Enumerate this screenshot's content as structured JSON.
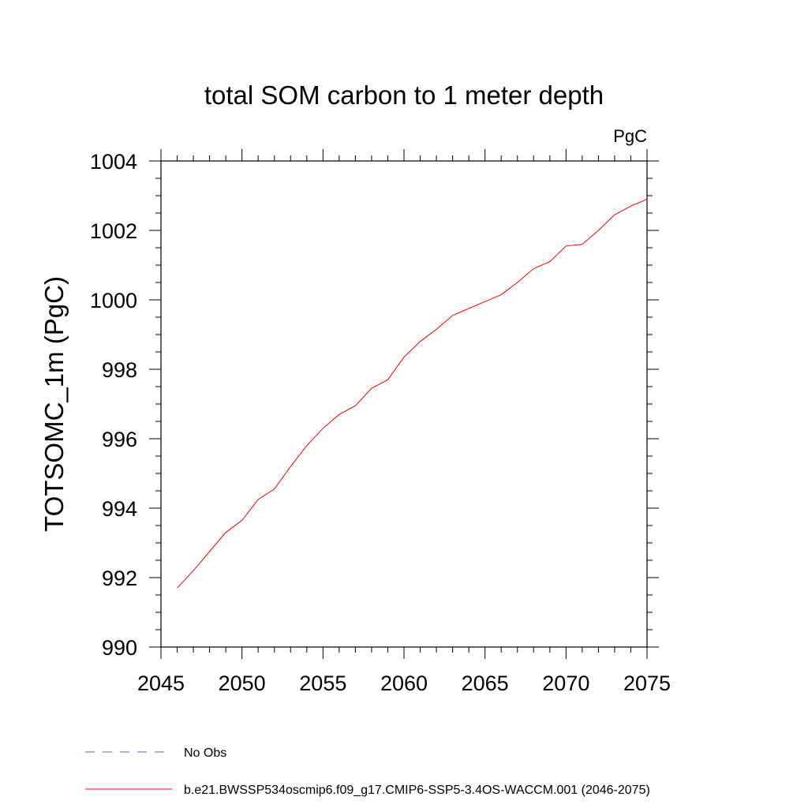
{
  "chart_data": {
    "type": "line",
    "title": "total SOM carbon to 1 meter depth",
    "units_label": "PgC",
    "xlabel": "",
    "ylabel": "TOTSOMC_1m  (PgC)",
    "xlim": [
      2045,
      2075
    ],
    "ylim": [
      990,
      1004
    ],
    "x_ticks": [
      2045,
      2050,
      2055,
      2060,
      2065,
      2070,
      2075
    ],
    "y_ticks": [
      990,
      992,
      994,
      996,
      998,
      1000,
      1002,
      1004
    ],
    "grid": false,
    "legend_position": "bottom-left",
    "series": [
      {
        "name": "b.e21.BWSSP534oscmip6.f09_g17.CMIP6-SSP5-3.4OS-WACCM.001 (2046-2075)",
        "color": "#ff0000",
        "style": "solid",
        "x": [
          2046,
          2047,
          2048,
          2049,
          2050,
          2051,
          2052,
          2053,
          2054,
          2055,
          2056,
          2057,
          2058,
          2059,
          2060,
          2061,
          2062,
          2063,
          2064,
          2065,
          2066,
          2067,
          2068,
          2069,
          2070,
          2071,
          2072,
          2073,
          2074,
          2075
        ],
        "values": [
          991.7,
          992.2,
          992.75,
          993.3,
          993.65,
          994.25,
          994.55,
          995.2,
          995.8,
          996.3,
          996.7,
          996.95,
          997.45,
          997.7,
          998.35,
          998.8,
          999.15,
          999.55,
          999.75,
          999.95,
          1000.15,
          1000.5,
          1000.9,
          1001.1,
          1001.55,
          1001.6,
          1002.0,
          1002.45,
          1002.7,
          1002.9
        ]
      },
      {
        "name": "No Obs",
        "color": "#6a5acd",
        "style": "dashed",
        "x": [],
        "values": []
      }
    ]
  }
}
